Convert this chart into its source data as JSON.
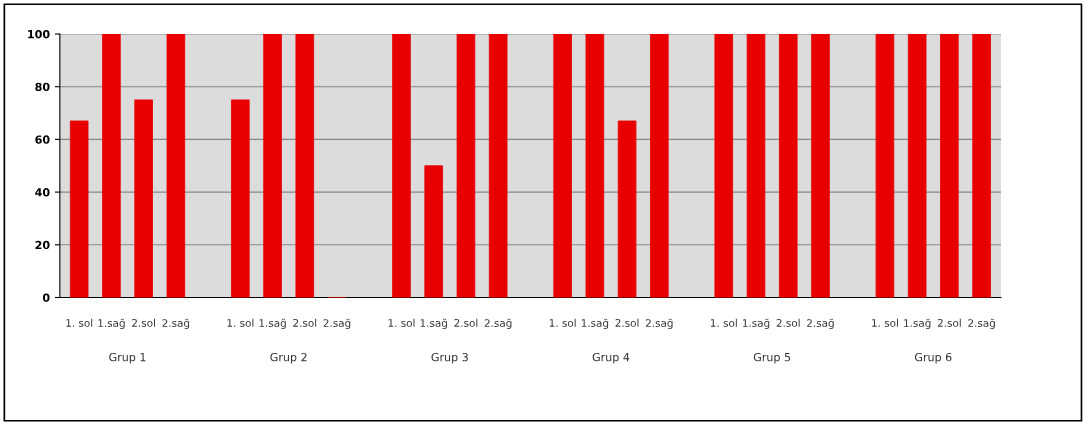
{
  "chart_data": {
    "type": "bar",
    "categories": [
      "1. sol",
      "1.sağ",
      "2.sol",
      "2.sağ",
      null,
      "1. sol",
      "1.sağ",
      "2.sol",
      "2.sağ",
      null,
      "1. sol",
      "1.sağ",
      "2.sol",
      "2.sağ",
      null,
      "1. sol",
      "1.sağ",
      "2.sol",
      "2.sağ",
      null,
      "1. sol",
      "1.sağ",
      "2.sol",
      "2.sağ",
      null,
      "1. sol",
      "1.sağ",
      "2.sol",
      "2.sağ"
    ],
    "values": [
      67,
      100,
      75,
      100,
      null,
      75,
      100,
      100,
      0,
      null,
      100,
      50,
      100,
      100,
      null,
      100,
      100,
      67,
      100,
      null,
      100,
      100,
      100,
      100,
      null,
      100,
      100,
      100,
      100
    ],
    "color": "#e80000",
    "annotations": [
      "Grup 1",
      "Grup 2",
      "Grup 3",
      "Grup 4",
      "Grup 5",
      "Grup 6"
    ],
    "ylim": [
      0,
      100
    ],
    "yticks": [
      0,
      20,
      40,
      60,
      80,
      100
    ],
    "grid": "y"
  }
}
